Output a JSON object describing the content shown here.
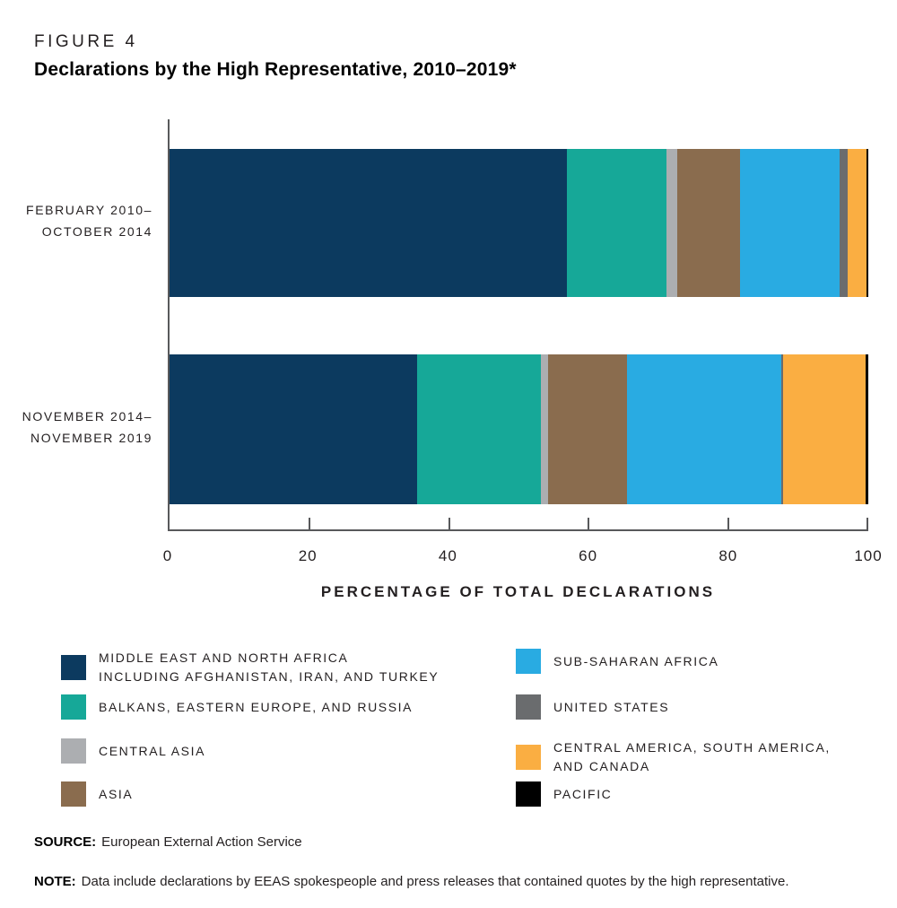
{
  "figure_label": "FIGURE 4",
  "title": "Declarations by the High Representative, 2010–2019*",
  "xaxis": {
    "label": "PERCENTAGE OF TOTAL DECLARATIONS",
    "ticks": [
      0,
      20,
      40,
      60,
      80,
      100
    ]
  },
  "source": {
    "label": "SOURCE:",
    "text": "European External Action Service"
  },
  "note": {
    "label": "NOTE:",
    "text": "Data include declarations by EEAS spokespeople and press releases that contained quotes by the high representative."
  },
  "colors": {
    "axis": "#58595B",
    "text": "#231F20",
    "mena": "#0C3A5F",
    "balkans": "#16A898",
    "central_asia": "#ACAEB1",
    "asia": "#8A6C4E",
    "sub_saharan_africa": "#29ABE2",
    "united_states": "#6A6C6E",
    "central_america": "#FAAE42",
    "pacific": "#000000"
  },
  "chart_data": {
    "type": "bar",
    "orientation": "horizontal",
    "stacked": true,
    "title": "Declarations by the High Representative, 2010–2019*",
    "xlabel": "PERCENTAGE OF TOTAL DECLARATIONS",
    "xlim": [
      0,
      100
    ],
    "grid": false,
    "legend_position": "bottom",
    "categories": [
      [
        "FEBRUARY 2010–",
        "OCTOBER 2014"
      ],
      [
        "NOVEMBER 2014–",
        "NOVEMBER 2019"
      ]
    ],
    "series": [
      {
        "name": "MIDDLE EAST AND NORTH AFRICA INCLUDING AFGHANISTAN, IRAN, AND TURKEY",
        "color": "#0C3A5F",
        "values": [
          56.9,
          35.4
        ]
      },
      {
        "name": "BALKANS, EASTERN EUROPE, AND RUSSIA",
        "color": "#16A898",
        "values": [
          14.2,
          17.8
        ]
      },
      {
        "name": "CENTRAL ASIA",
        "color": "#ACAEB1",
        "values": [
          1.5,
          1.0
        ]
      },
      {
        "name": "ASIA",
        "color": "#8A6C4E",
        "values": [
          9.0,
          11.3
        ]
      },
      {
        "name": "SUB-SAHARAN AFRICA",
        "color": "#29ABE2",
        "values": [
          14.3,
          22.1
        ]
      },
      {
        "name": "UNITED STATES",
        "color": "#6A6C6E",
        "values": [
          1.1,
          0.2
        ]
      },
      {
        "name": "CENTRAL AMERICA, SOUTH AMERICA, AND CANADA",
        "color": "#FAAE42",
        "values": [
          2.7,
          11.8
        ]
      },
      {
        "name": "PACIFIC",
        "color": "#000000",
        "values": [
          0.3,
          0.4
        ]
      }
    ]
  },
  "legend": {
    "columns": [
      [
        {
          "color": "#0C3A5F",
          "lines": [
            "MIDDLE EAST AND NORTH AFRICA",
            "INCLUDING AFGHANISTAN, IRAN, AND TURKEY"
          ]
        },
        {
          "color": "#16A898",
          "lines": [
            "BALKANS, EASTERN EUROPE, AND RUSSIA"
          ]
        },
        {
          "color": "#ACAEB1",
          "lines": [
            "CENTRAL ASIA"
          ]
        },
        {
          "color": "#8A6C4E",
          "lines": [
            "ASIA"
          ]
        }
      ],
      [
        {
          "color": "#29ABE2",
          "lines": [
            "SUB-SAHARAN AFRICA"
          ]
        },
        {
          "color": "#6A6C6E",
          "lines": [
            "UNITED STATES"
          ]
        },
        {
          "color": "#FAAE42",
          "lines": [
            "CENTRAL AMERICA, SOUTH AMERICA,",
            "AND CANADA"
          ]
        },
        {
          "color": "#000000",
          "lines": [
            "PACIFIC"
          ]
        }
      ]
    ]
  }
}
